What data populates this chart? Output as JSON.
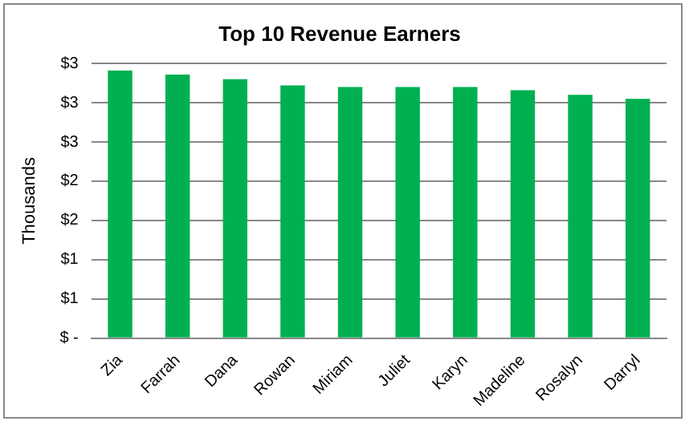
{
  "chart_data": {
    "type": "bar",
    "title": "Top 10 Revenue Earners",
    "ylabel": "Thousands",
    "categories": [
      "Zia",
      "Farrah",
      "Dana",
      "Rowan",
      "Miriam",
      "Juliet",
      "Karyn",
      "Madeline",
      "Rosalyn",
      "Darryl"
    ],
    "values": [
      3.41,
      3.36,
      3.3,
      3.22,
      3.2,
      3.2,
      3.2,
      3.16,
      3.1,
      3.05
    ],
    "color": "#00b050",
    "ylim": [
      0,
      3.5
    ],
    "yticks": [
      {
        "value": 0,
        "label": "$ -"
      },
      {
        "value": 0.5,
        "label": "$1"
      },
      {
        "value": 1,
        "label": "$1"
      },
      {
        "value": 1.5,
        "label": "$2"
      },
      {
        "value": 2,
        "label": "$2"
      },
      {
        "value": 2.5,
        "label": "$3"
      },
      {
        "value": 3,
        "label": "$3"
      },
      {
        "value": 3.5,
        "label": "$3"
      }
    ],
    "grid": "y",
    "legend": false
  }
}
